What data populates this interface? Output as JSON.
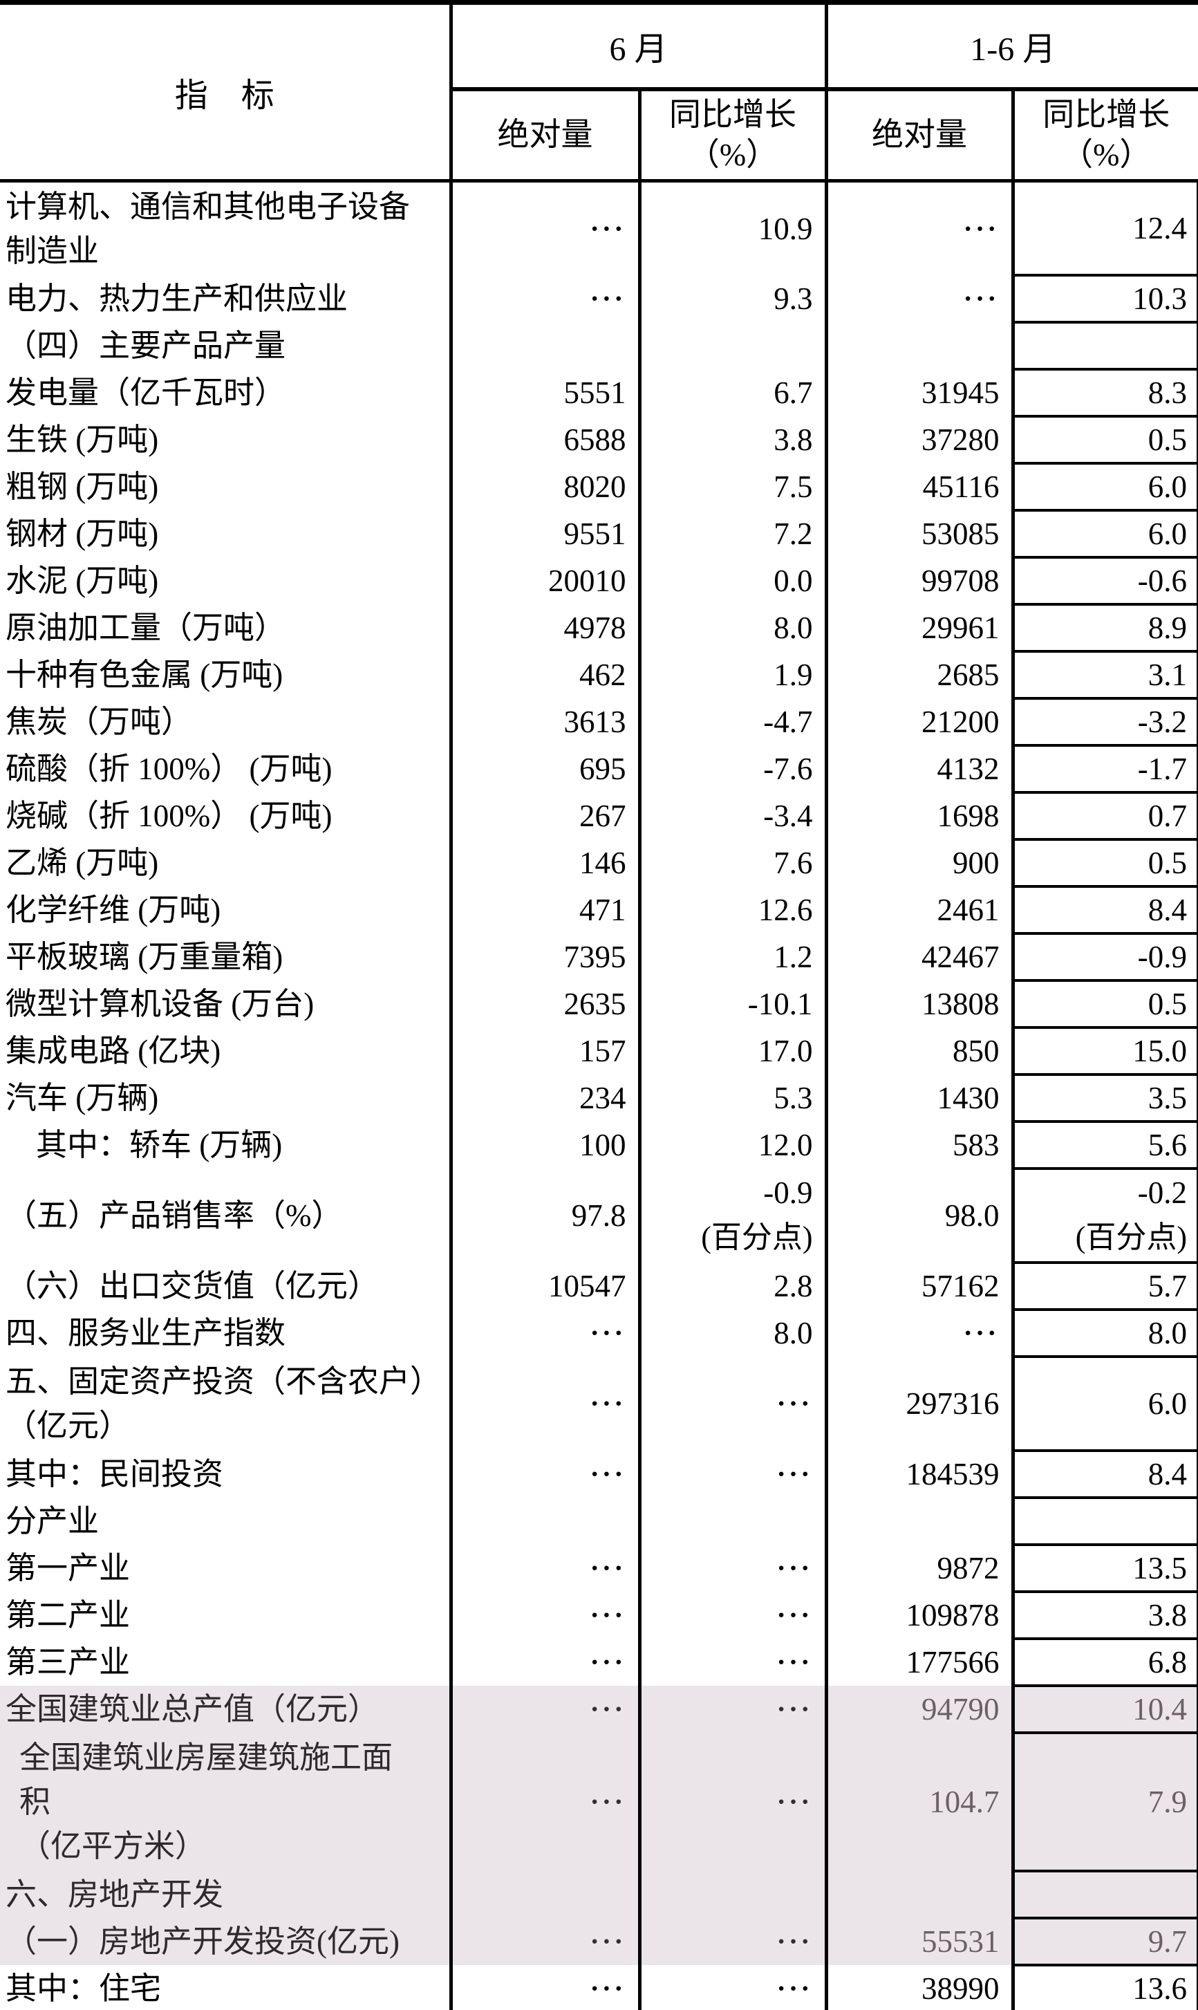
{
  "table": {
    "header": {
      "indicator": "指　标",
      "col_group_june": "6 月",
      "col_group_jan_june": "1-6 月",
      "col_abs": "绝对量",
      "col_yoy_line1": "同比增长",
      "col_yoy_line2": "（%）"
    },
    "highlight_color": "#ebe4e8",
    "highlight_text_color": "#6a6065",
    "rows": [
      {
        "label_lines": [
          "计算机、通信和其他电子设备",
          "制造业"
        ],
        "june_abs": "···",
        "june_yoy": "10.9",
        "h1_abs": "···",
        "h1_yoy": "12.4"
      },
      {
        "label_lines": [
          "电力、热力生产和供应业"
        ],
        "june_abs": "···",
        "june_yoy": "9.3",
        "h1_abs": "···",
        "h1_yoy": "10.3"
      },
      {
        "label_lines": [
          "（四）主要产品产量"
        ],
        "june_abs": "",
        "june_yoy": "",
        "h1_abs": "",
        "h1_yoy": ""
      },
      {
        "label_lines": [
          "发电量（亿千瓦时）"
        ],
        "june_abs": "5551",
        "june_yoy": "6.7",
        "h1_abs": "31945",
        "h1_yoy": "8.3"
      },
      {
        "label_lines": [
          "生铁 (万吨)"
        ],
        "june_abs": "6588",
        "june_yoy": "3.8",
        "h1_abs": "37280",
        "h1_yoy": "0.5"
      },
      {
        "label_lines": [
          "粗钢 (万吨)"
        ],
        "june_abs": "8020",
        "june_yoy": "7.5",
        "h1_abs": "45116",
        "h1_yoy": "6.0"
      },
      {
        "label_lines": [
          "钢材 (万吨)"
        ],
        "june_abs": "9551",
        "june_yoy": "7.2",
        "h1_abs": "53085",
        "h1_yoy": "6.0"
      },
      {
        "label_lines": [
          "水泥 (万吨)"
        ],
        "june_abs": "20010",
        "june_yoy": "0.0",
        "h1_abs": "99708",
        "h1_yoy": "-0.6"
      },
      {
        "label_lines": [
          "原油加工量（万吨）"
        ],
        "june_abs": "4978",
        "june_yoy": "8.0",
        "h1_abs": "29961",
        "h1_yoy": "8.9"
      },
      {
        "label_lines": [
          "十种有色金属 (万吨)"
        ],
        "june_abs": "462",
        "june_yoy": "1.9",
        "h1_abs": "2685",
        "h1_yoy": "3.1"
      },
      {
        "label_lines": [
          "焦炭（万吨）"
        ],
        "june_abs": "3613",
        "june_yoy": "-4.7",
        "h1_abs": "21200",
        "h1_yoy": "-3.2"
      },
      {
        "label_lines": [
          "硫酸（折 100%） (万吨)"
        ],
        "june_abs": "695",
        "june_yoy": "-7.6",
        "h1_abs": "4132",
        "h1_yoy": "-1.7"
      },
      {
        "label_lines": [
          "烧碱（折 100%） (万吨)"
        ],
        "june_abs": "267",
        "june_yoy": "-3.4",
        "h1_abs": "1698",
        "h1_yoy": "0.7"
      },
      {
        "label_lines": [
          "乙烯 (万吨)"
        ],
        "june_abs": "146",
        "june_yoy": "7.6",
        "h1_abs": "900",
        "h1_yoy": "0.5"
      },
      {
        "label_lines": [
          "化学纤维 (万吨)"
        ],
        "june_abs": "471",
        "june_yoy": "12.6",
        "h1_abs": "2461",
        "h1_yoy": "8.4"
      },
      {
        "label_lines": [
          "平板玻璃 (万重量箱)"
        ],
        "june_abs": "7395",
        "june_yoy": "1.2",
        "h1_abs": "42467",
        "h1_yoy": "-0.9"
      },
      {
        "label_lines": [
          "微型计算机设备 (万台)"
        ],
        "june_abs": "2635",
        "june_yoy": "-10.1",
        "h1_abs": "13808",
        "h1_yoy": "0.5"
      },
      {
        "label_lines": [
          "集成电路 (亿块)"
        ],
        "june_abs": "157",
        "june_yoy": "17.0",
        "h1_abs": "850",
        "h1_yoy": "15.0"
      },
      {
        "label_lines": [
          "汽车 (万辆)"
        ],
        "june_abs": "234",
        "june_yoy": "5.3",
        "h1_abs": "1430",
        "h1_yoy": "3.5"
      },
      {
        "label_lines": [
          "其中：轿车 (万辆)"
        ],
        "indent": 2,
        "june_abs": "100",
        "june_yoy": "12.0",
        "h1_abs": "583",
        "h1_yoy": "5.6"
      },
      {
        "label_lines": [
          "（五）产品销售率（%）"
        ],
        "june_abs": "97.8",
        "june_yoy": "-0.9",
        "june_yoy_note": "(百分点)",
        "h1_abs": "98.0",
        "h1_yoy": "-0.2",
        "h1_yoy_note": "(百分点)"
      },
      {
        "label_lines": [
          "（六）出口交货值（亿元）"
        ],
        "june_abs": "10547",
        "june_yoy": "2.8",
        "h1_abs": "57162",
        "h1_yoy": "5.7"
      },
      {
        "label_lines": [
          "四、服务业生产指数"
        ],
        "june_abs": "···",
        "june_yoy": "8.0",
        "h1_abs": "···",
        "h1_yoy": "8.0"
      },
      {
        "label_lines": [
          "五、固定资产投资（不含农户）",
          "（亿元）"
        ],
        "june_abs": "···",
        "june_yoy": "···",
        "h1_abs": "297316",
        "h1_yoy": "6.0"
      },
      {
        "label_lines": [
          "其中：民间投资"
        ],
        "june_abs": "···",
        "june_yoy": "···",
        "h1_abs": "184539",
        "h1_yoy": "8.4"
      },
      {
        "label_lines": [
          "分产业"
        ],
        "june_abs": "",
        "june_yoy": "",
        "h1_abs": "",
        "h1_yoy": ""
      },
      {
        "label_lines": [
          "第一产业"
        ],
        "june_abs": "···",
        "june_yoy": "···",
        "h1_abs": "9872",
        "h1_yoy": "13.5"
      },
      {
        "label_lines": [
          "第二产业"
        ],
        "june_abs": "···",
        "june_yoy": "···",
        "h1_abs": "109878",
        "h1_yoy": "3.8"
      },
      {
        "label_lines": [
          "第三产业"
        ],
        "june_abs": "···",
        "june_yoy": "···",
        "h1_abs": "177566",
        "h1_yoy": "6.8"
      },
      {
        "label_lines": [
          "全国建筑业总产值（亿元）"
        ],
        "highlight": true,
        "june_abs": "···",
        "june_yoy": "···",
        "h1_abs": "94790",
        "h1_yoy": "10.4"
      },
      {
        "label_lines": [
          "全国建筑业房屋建筑施工面",
          "积",
          "（亿平方米）"
        ],
        "highlight": true,
        "indent": 1,
        "june_abs": "···",
        "june_yoy": "···",
        "h1_abs": "104.7",
        "h1_yoy": "7.9"
      },
      {
        "label_lines": [
          "六、房地产开发"
        ],
        "highlight": true,
        "june_abs": "",
        "june_yoy": "",
        "h1_abs": "",
        "h1_yoy": ""
      },
      {
        "label_lines": [
          "（一）房地产开发投资(亿元)"
        ],
        "highlight": true,
        "june_abs": "···",
        "june_yoy": "···",
        "h1_abs": "55531",
        "h1_yoy": "9.7"
      },
      {
        "label_lines": [
          "其中：住宅"
        ],
        "june_abs": "···",
        "june_yoy": "···",
        "h1_abs": "38990",
        "h1_yoy": "13.6"
      }
    ]
  }
}
